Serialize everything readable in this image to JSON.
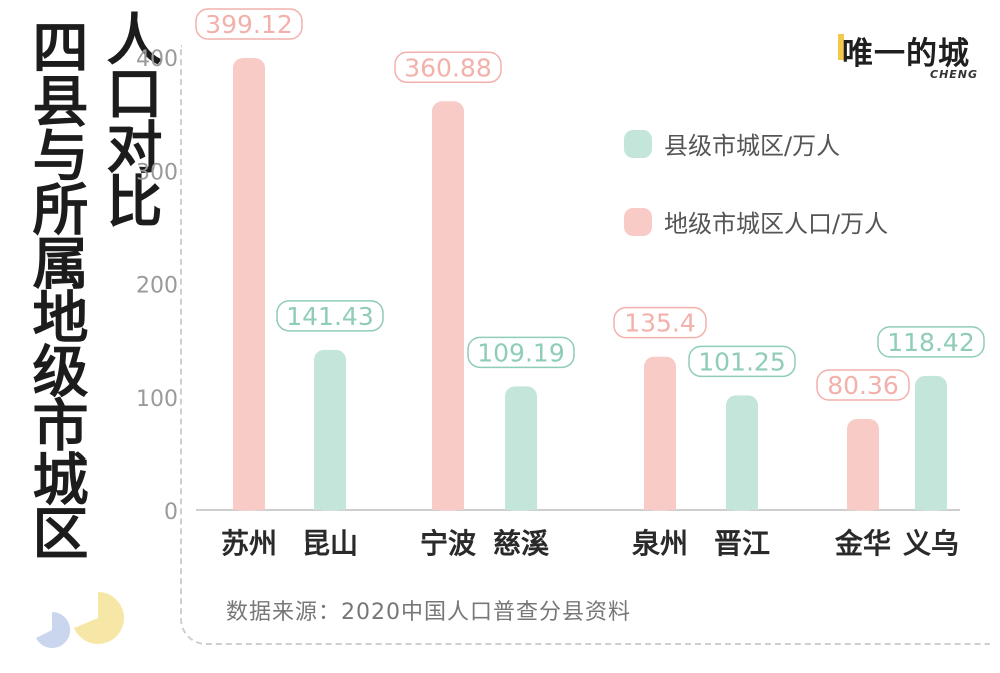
{
  "title": "四县与所属地级市城区",
  "subtitle": "人口对比",
  "brand": {
    "name": "唯一的城",
    "sub": "CHENG"
  },
  "source": "数据来源：2020中国人口普查分县资料",
  "colors": {
    "pink": "#f8cbc6",
    "green": "#c4e6da",
    "pinkLabel": "#f2b1ab",
    "greenLabel": "#8fcdb6"
  },
  "chart_data": {
    "type": "bar",
    "ylim": [
      0,
      400
    ],
    "yticks": [
      0,
      100,
      200,
      300,
      400
    ],
    "legend": [
      {
        "name": "县级市城区/万人",
        "color": "green"
      },
      {
        "name": "地级市城区人口/万人",
        "color": "pink"
      }
    ],
    "groups": [
      {
        "bars": [
          {
            "category": "苏州",
            "value": 399.12,
            "label": "399.12",
            "color": "pink"
          },
          {
            "category": "昆山",
            "value": 141.43,
            "label": "141.43",
            "color": "green"
          }
        ]
      },
      {
        "bars": [
          {
            "category": "宁波",
            "value": 360.88,
            "label": "360.88",
            "color": "pink"
          },
          {
            "category": "慈溪",
            "value": 109.19,
            "label": "109.19",
            "color": "green"
          }
        ]
      },
      {
        "bars": [
          {
            "category": "泉州",
            "value": 135.4,
            "label": "135.4",
            "color": "pink"
          },
          {
            "category": "晋江",
            "value": 101.25,
            "label": "101.25",
            "color": "green"
          }
        ]
      },
      {
        "bars": [
          {
            "category": "金华",
            "value": 80.36,
            "label": "80.36",
            "color": "pink"
          },
          {
            "category": "义乌",
            "value": 118.42,
            "label": "118.42",
            "color": "green"
          }
        ]
      }
    ]
  }
}
